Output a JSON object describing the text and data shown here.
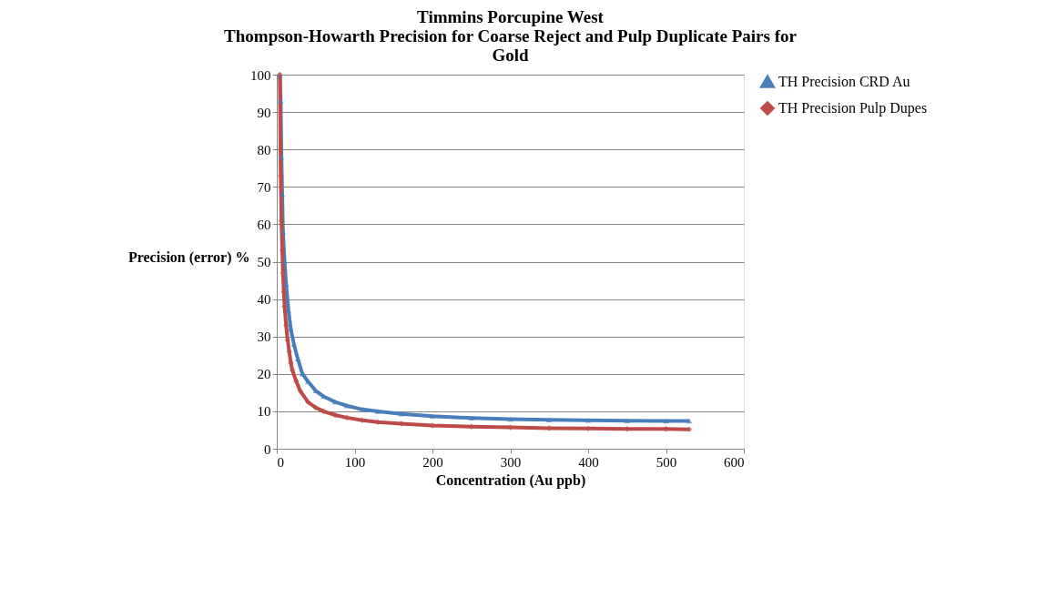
{
  "chart_data": {
    "type": "line",
    "title": [
      "Timmins Porcupine West",
      "Thompson-Howarth Precision for Coarse Reject and Pulp Duplicate Pairs for",
      "Gold"
    ],
    "xlabel": "Concentration (Au ppb)",
    "ylabel": "Precision (error) %",
    "xlim": [
      0,
      600
    ],
    "xticks": [
      0,
      100,
      200,
      300,
      400,
      500,
      600
    ],
    "ylim": [
      0,
      100
    ],
    "yticks": [
      0,
      10,
      20,
      30,
      40,
      50,
      60,
      70,
      80,
      90,
      100
    ],
    "grid": "y",
    "legend": "right",
    "series": [
      {
        "name": "TH Precision CRD Au",
        "color": "#4a7ebb",
        "marker": "triangle",
        "x": [
          4,
          5,
          6,
          7,
          8,
          10,
          12,
          15,
          18,
          22,
          27,
          33,
          40,
          50,
          60,
          75,
          90,
          110,
          130,
          160,
          200,
          250,
          300,
          350,
          400,
          450,
          500,
          530
        ],
        "values": [
          100,
          93,
          78,
          68,
          58,
          50,
          44,
          37,
          32,
          28,
          24,
          20,
          18,
          15.5,
          14,
          12.5,
          11.5,
          10.5,
          10,
          9.3,
          8.7,
          8.2,
          7.9,
          7.7,
          7.6,
          7.5,
          7.4,
          7.4
        ]
      },
      {
        "name": "TH Precision Pulp Dupes",
        "color": "#be4b48",
        "marker": "diamond",
        "x": [
          4,
          5,
          6,
          7,
          8,
          9,
          10,
          12,
          14,
          16,
          18,
          20,
          25,
          30,
          40,
          50,
          60,
          75,
          90,
          110,
          130,
          160,
          200,
          250,
          300,
          350,
          400,
          450,
          500,
          530
        ],
        "values": [
          100,
          73,
          61,
          53,
          47,
          42,
          38,
          33,
          29,
          26,
          23,
          21,
          18,
          15.5,
          12.5,
          11,
          10,
          9,
          8.3,
          7.6,
          7.1,
          6.7,
          6.2,
          5.9,
          5.7,
          5.5,
          5.4,
          5.3,
          5.3,
          5.2
        ]
      }
    ]
  }
}
